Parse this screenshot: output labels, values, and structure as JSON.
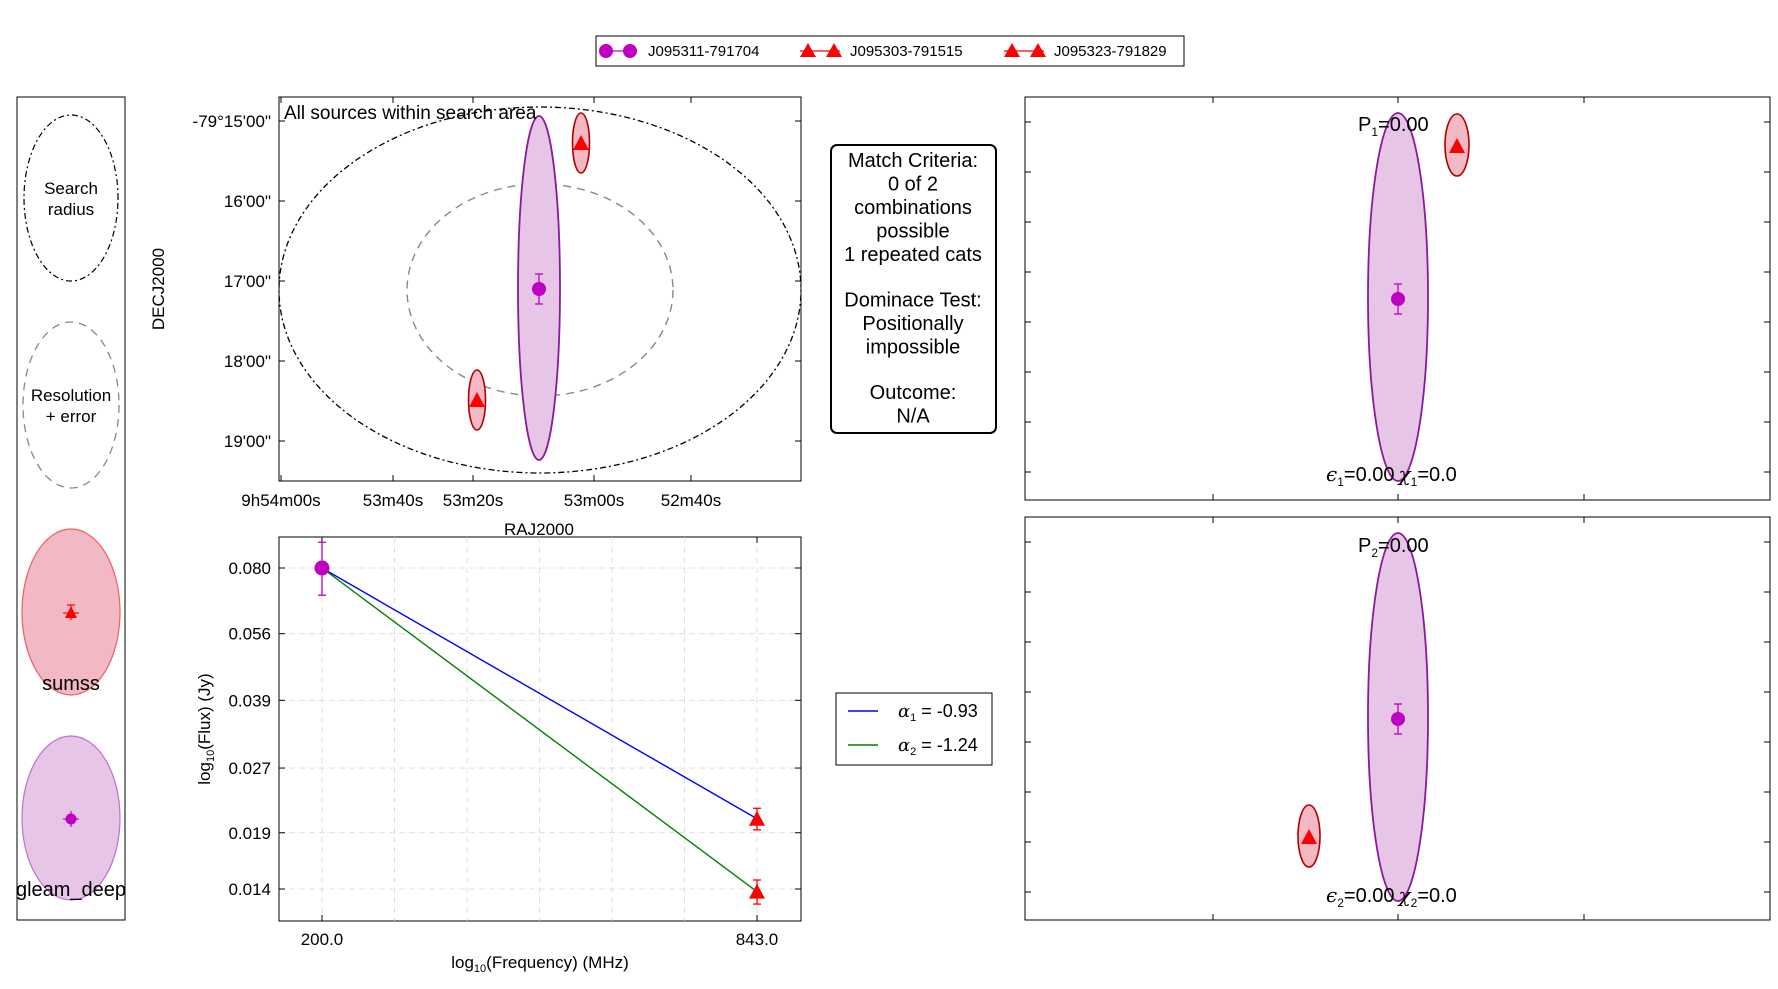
{
  "legend": {
    "entries": [
      {
        "label": "J095311-791704",
        "marker": "circle",
        "color": "#c000c0"
      },
      {
        "label": "J095303-791515",
        "marker": "triangle",
        "color": "#ff0000"
      },
      {
        "label": "J095323-791829",
        "marker": "triangle",
        "color": "#ff0000"
      }
    ]
  },
  "key_panel": {
    "search_radius": [
      "Search",
      "radius"
    ],
    "resolution_error": [
      "Resolution",
      "+ error"
    ],
    "catalog_1": "sumss",
    "catalog_2": "gleam_deep"
  },
  "colors": {
    "gleam_fill": "#e6c5e6",
    "gleam_edge": "#8a1a9a",
    "gleam_marker": "#c000c0",
    "sumss_fill": "#f2b8c4",
    "sumss_edge": "#b00000",
    "sumss_marker": "#ff0000",
    "fit1": "#0000ff",
    "fit2": "#008000"
  },
  "criteria": {
    "lines": [
      "Match Criteria:",
      "0 of 2",
      "combinations",
      "possible",
      "1 repeated cats",
      "",
      "Dominace Test:",
      "Positionally",
      "impossible",
      "",
      "Outcome:",
      "N/A"
    ]
  },
  "alpha_legend": {
    "entries": [
      {
        "symbol": "α",
        "sub": "1",
        "value": " = -0.93"
      },
      {
        "symbol": "α",
        "sub": "2",
        "value": " = -1.24"
      }
    ]
  },
  "match_panels": [
    {
      "p_label": "P",
      "p_sub": "1",
      "p_value": "=0.00",
      "e_label": "ϵ",
      "e_sub": "1",
      "e_value": "=0.00",
      "chi_label": "χ",
      "chi_sub": "1",
      "chi_value": "=0.0"
    },
    {
      "p_label": "P",
      "p_sub": "2",
      "p_value": "=0.00",
      "e_label": "ϵ",
      "e_sub": "2",
      "e_value": "=0.00",
      "chi_label": "χ",
      "chi_sub": "2",
      "chi_value": "=0.0"
    }
  ],
  "chart_data": [
    {
      "type": "scatter",
      "title": "All sources within search area",
      "xlabel": "RAJ2000",
      "ylabel": "DECJ2000",
      "x_ticks": [
        "9h54m00s",
        "53m40s",
        "53m20s",
        "53m00s",
        "52m40s"
      ],
      "y_ticks": [
        "-79°15'00\"",
        "16'00\"",
        "17'00\"",
        "18'00\"",
        "19'00\"",
        ""
      ],
      "points": [
        {
          "name": "J095311-791704",
          "catalog": "gleam_deep",
          "ra_s_offset": 11.5,
          "dec_min_offset": 2.1,
          "marker": "circle"
        },
        {
          "name": "J095303-791515",
          "catalog": "sumss",
          "ra_s_offset": 3.2,
          "dec_min_offset": 0.3,
          "marker": "triangle"
        },
        {
          "name": "J095323-791829",
          "catalog": "sumss",
          "ra_s_offset": 22.9,
          "dec_min_offset": 3.5,
          "marker": "triangle"
        }
      ]
    },
    {
      "type": "line",
      "xlabel": "log10(Frequency) (MHz)",
      "ylabel": "log10(Flux) (Jy)",
      "x_ticks": [
        "200.0",
        "843.0"
      ],
      "y_ticks": [
        "0.080",
        "0.056",
        "0.039",
        "0.027",
        "0.019",
        "0.014"
      ],
      "grid": true,
      "points": [
        {
          "freq": 200.0,
          "flux": 0.08,
          "err_up": 0.012,
          "err_down": 0.011,
          "marker": "circle"
        },
        {
          "freq": 843.0,
          "flux": 0.0205,
          "err_up": 0.0012,
          "err_down": 0.0012,
          "marker": "triangle"
        },
        {
          "freq": 843.0,
          "flux": 0.0138,
          "err_up": 0.0009,
          "err_down": 0.0009,
          "marker": "triangle"
        }
      ],
      "series": [
        {
          "symbol": "α1",
          "alpha": -0.93,
          "from_flux": 0.08,
          "to_flux": 0.0205
        },
        {
          "symbol": "α2",
          "alpha": -1.24,
          "from_flux": 0.08,
          "to_flux": 0.0138
        }
      ]
    }
  ]
}
